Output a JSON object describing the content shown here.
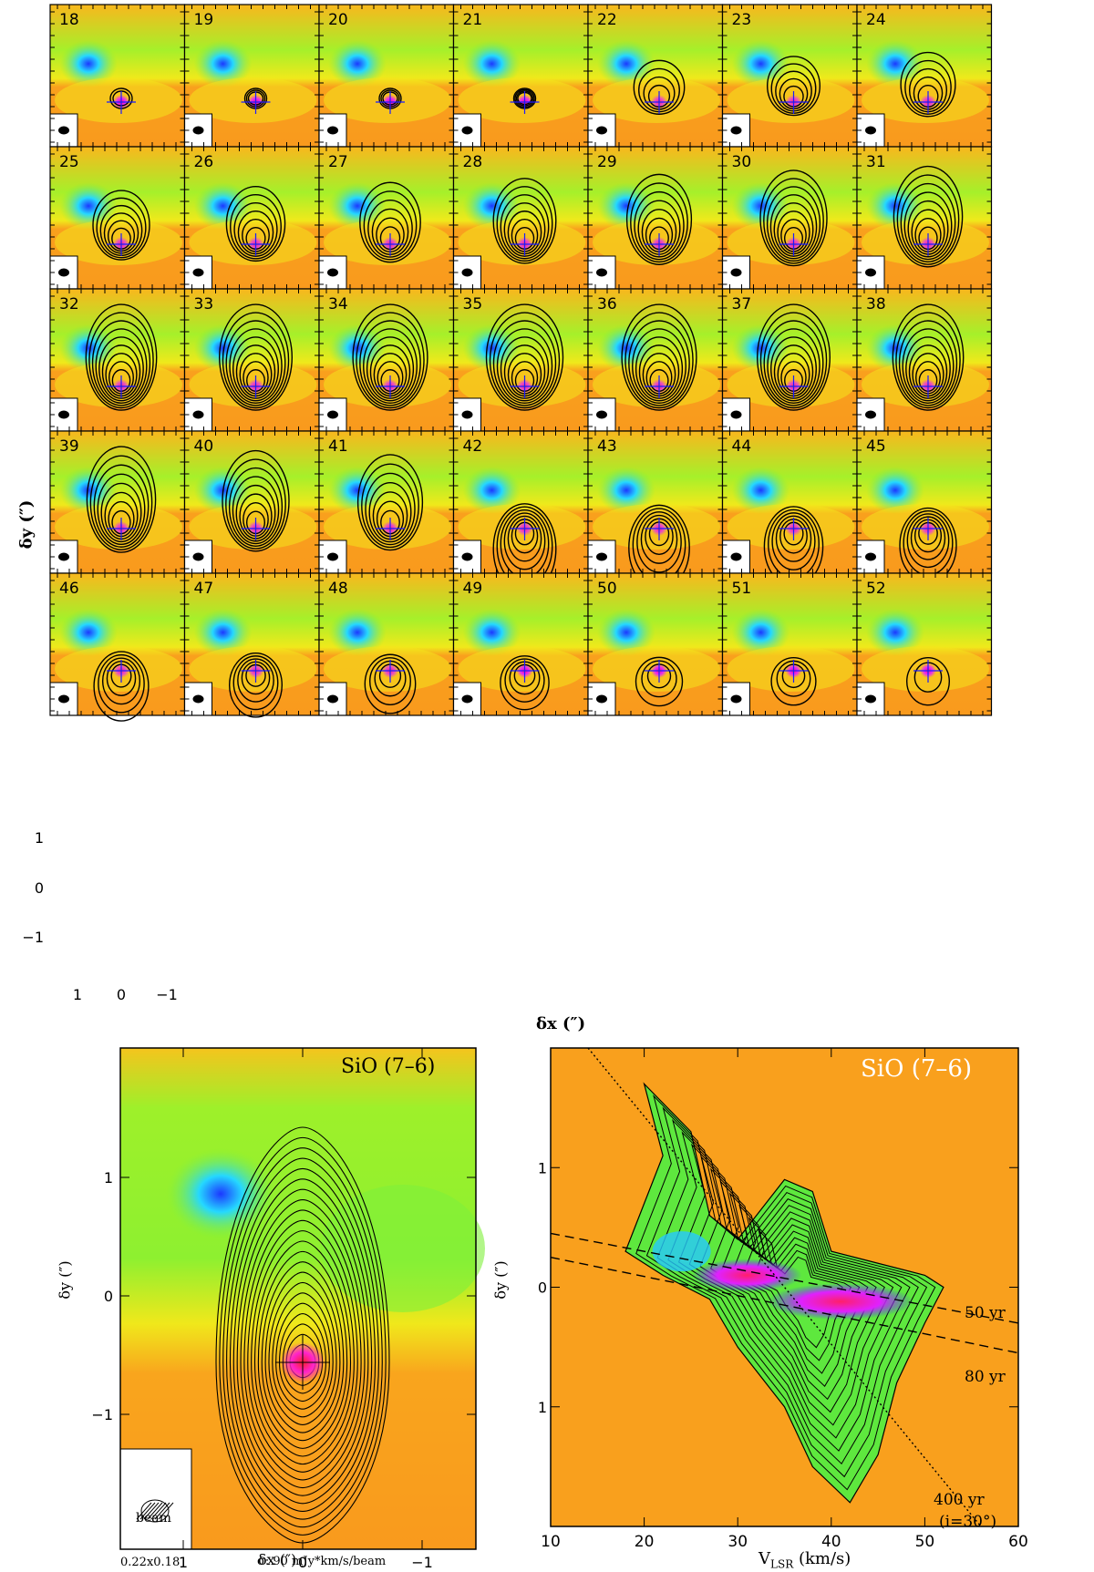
{
  "colors": {
    "bg_orange": "#f9a01d",
    "bg_yellow": "#f1f71c",
    "bg_green": "#7ef03b",
    "blob_blue": "#1c4cff",
    "blob_cyan": "#23e6ff",
    "peak_magenta": "#ff22cc",
    "peak_red": "#ff1f4a",
    "contour": "#000000"
  },
  "channel_grid": {
    "channels": [
      "18",
      "19",
      "20",
      "21",
      "22",
      "23",
      "24",
      "25",
      "26",
      "27",
      "28",
      "29",
      "30",
      "31",
      "32",
      "33",
      "34",
      "35",
      "36",
      "37",
      "38",
      "39",
      "40",
      "41",
      "42",
      "43",
      "44",
      "45",
      "46",
      "47",
      "48",
      "49",
      "50",
      "51",
      "52"
    ],
    "y_ticks": [
      "1",
      "0",
      "−1"
    ],
    "x_ticks": [
      "1",
      "0",
      "−1"
    ],
    "ylabel": "δy (″)",
    "xlabel": "δx (″)"
  },
  "left_panel": {
    "title": "SiO (7–6)",
    "beam_label": "beam",
    "beam_size": "0.22x0.18",
    "sigma": "σ: 90 mJy*km/s/beam",
    "xlabel": "δx (″)",
    "ylabel": "δy (″)",
    "x_ticks": [
      "1",
      "0",
      "−1"
    ],
    "y_ticks": [
      "1",
      "0",
      "−1"
    ]
  },
  "right_panel": {
    "title": "SiO (7–6)",
    "xlabel": "V",
    "xlabel_sub": "LSR",
    "xlabel_unit": " (km/s)",
    "ylabel": "δy (″)",
    "x_ticks": [
      "10",
      "20",
      "30",
      "40",
      "50",
      "60"
    ],
    "y_ticks": [
      "1",
      "0",
      "−1"
    ],
    "annotations": [
      "50  yr",
      "80  yr",
      "400  yr",
      "(i=30°)"
    ]
  },
  "chart_data": [
    {
      "type": "heatmap",
      "title": "",
      "description_source": "channel maps with contours",
      "channels_kms": [
        18,
        19,
        20,
        21,
        22,
        23,
        24,
        25,
        26,
        27,
        28,
        29,
        30,
        31,
        32,
        33,
        34,
        35,
        36,
        37,
        38,
        39,
        40,
        41,
        42,
        43,
        44,
        45,
        46,
        47,
        48,
        49,
        50,
        51,
        52
      ],
      "xlim": [
        1.5,
        -1.5
      ],
      "ylim": [
        -1.9,
        1.9
      ],
      "xlabel": "δx (″)",
      "ylabel": "δy (″)",
      "grid": false
    },
    {
      "type": "heatmap",
      "title": "SiO (7–6)",
      "xlim": [
        1.5,
        -1.5
      ],
      "ylim": [
        -1.9,
        1.9
      ],
      "xlabel": "δx (″)",
      "ylabel": "δy (″)",
      "beam": "0.22x0.18",
      "sigma": "90 mJy*km/s/beam"
    },
    {
      "type": "heatmap",
      "title": "SiO (7–6)",
      "xlim": [
        10,
        60
      ],
      "ylim": [
        -2.0,
        2.0
      ],
      "xlabel": "V_LSR (km/s)",
      "ylabel": "δy (″)",
      "lines": [
        {
          "name": "50 yr",
          "style": "dashed",
          "points": [
            [
              10,
              0.45
            ],
            [
              60,
              -0.3
            ]
          ]
        },
        {
          "name": "80 yr",
          "style": "dashed",
          "points": [
            [
              10,
              0.25
            ],
            [
              60,
              -0.55
            ]
          ]
        },
        {
          "name": "400 yr (i=30°)",
          "style": "dotted",
          "points": [
            [
              14,
              2.0
            ],
            [
              56,
              -2.0
            ]
          ]
        }
      ]
    }
  ]
}
